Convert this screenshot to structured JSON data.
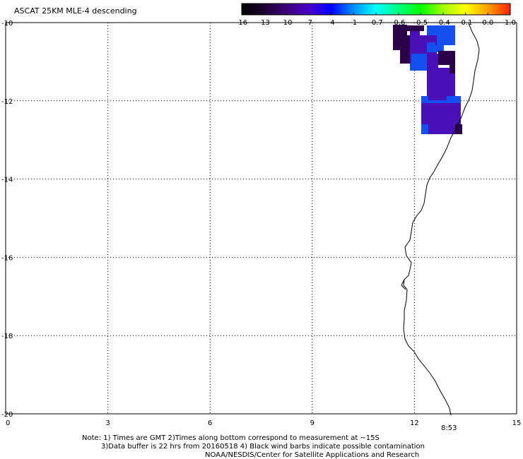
{
  "title": "ASCAT 25KM MLE-4 descending",
  "colorbar": {
    "tick_labels": [
      "-16",
      "-13",
      "-10",
      "-7",
      "-4",
      "-1",
      "-0.7",
      "-0.6",
      "-0.5",
      "-0.4",
      "-0.1",
      "0.0",
      "1.0"
    ],
    "colors": [
      "#000000",
      "#1e0032",
      "#3c0078",
      "#4b00c8",
      "#0000ff",
      "#0090ff",
      "#00ffff",
      "#00ff80",
      "#00ff00",
      "#a0ff00",
      "#ffff00",
      "#ffa000",
      "#ff2000"
    ]
  },
  "axes": {
    "x_ticks": [
      "0",
      "3",
      "6",
      "9",
      "12",
      "15"
    ],
    "y_ticks": [
      "-10",
      "-12",
      "-14",
      "-16",
      "-18",
      "-20"
    ],
    "xlim": [
      0,
      15
    ],
    "ylim": [
      -20,
      -10
    ]
  },
  "pass_time": "8:53",
  "pass_time_color": "#cc0000",
  "data_colors": {
    "dark_purple": "#2a0048",
    "mid_purple": "#4a10b8",
    "blue": "#1450f0"
  },
  "notes": {
    "line1": "Note: 1) Times are GMT 2)Times along bottom correspond to measurement at ~15S",
    "line2": "3)Data buffer is 22 hrs from 20160518 4) Black wind barbs indicate possible contamination",
    "line3": "NOAA/NESDIS/Center for Satellite Applications and Research"
  }
}
